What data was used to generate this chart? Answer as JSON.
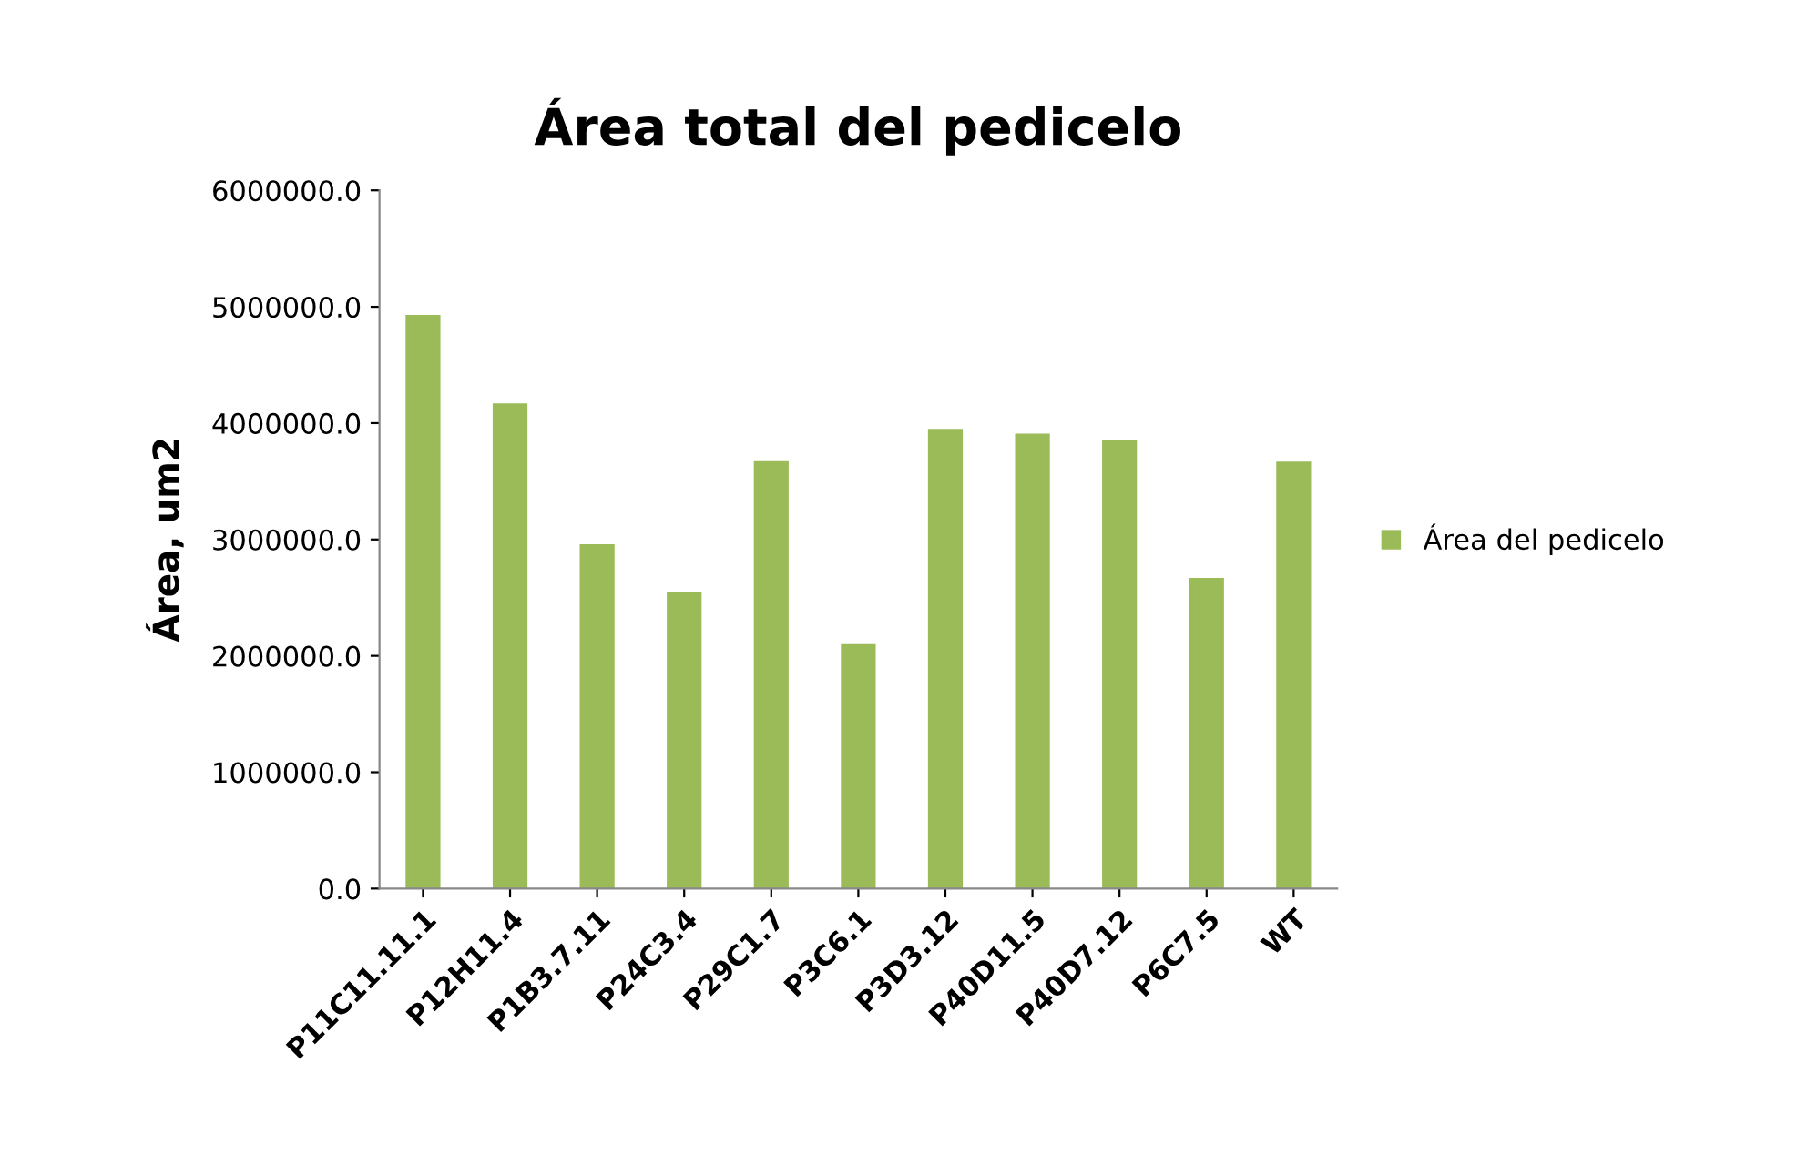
{
  "chart_data": {
    "type": "bar",
    "title": "Área total del pedicelo",
    "ylabel": "Área, um2",
    "categories": [
      "P11C11.11.1",
      "P12H11.4",
      "P1B3.7.11",
      "P24C3.4",
      "P29C1.7",
      "P3C6.1",
      "P3D3.12",
      "P40D11.5",
      "P40D7.12",
      "P6C7.5",
      "WT"
    ],
    "series": [
      {
        "name": "Área del pedicelo",
        "color": "#9bbb59",
        "values": [
          4930000,
          4170000,
          2960000,
          2550000,
          3680000,
          2100000,
          3950000,
          3910000,
          3850000,
          2670000,
          3670000
        ]
      }
    ],
    "ylim": [
      0,
      6000000
    ],
    "yticks": [
      {
        "value": 0,
        "label": "0.0"
      },
      {
        "value": 1000000,
        "label": "1000000.0"
      },
      {
        "value": 2000000,
        "label": "2000000.0"
      },
      {
        "value": 3000000,
        "label": "3000000.0"
      },
      {
        "value": 4000000,
        "label": "4000000.0"
      },
      {
        "value": 5000000,
        "label": "5000000.0"
      },
      {
        "value": 6000000,
        "label": "6000000.0"
      }
    ],
    "grid": false,
    "legend": "right"
  }
}
